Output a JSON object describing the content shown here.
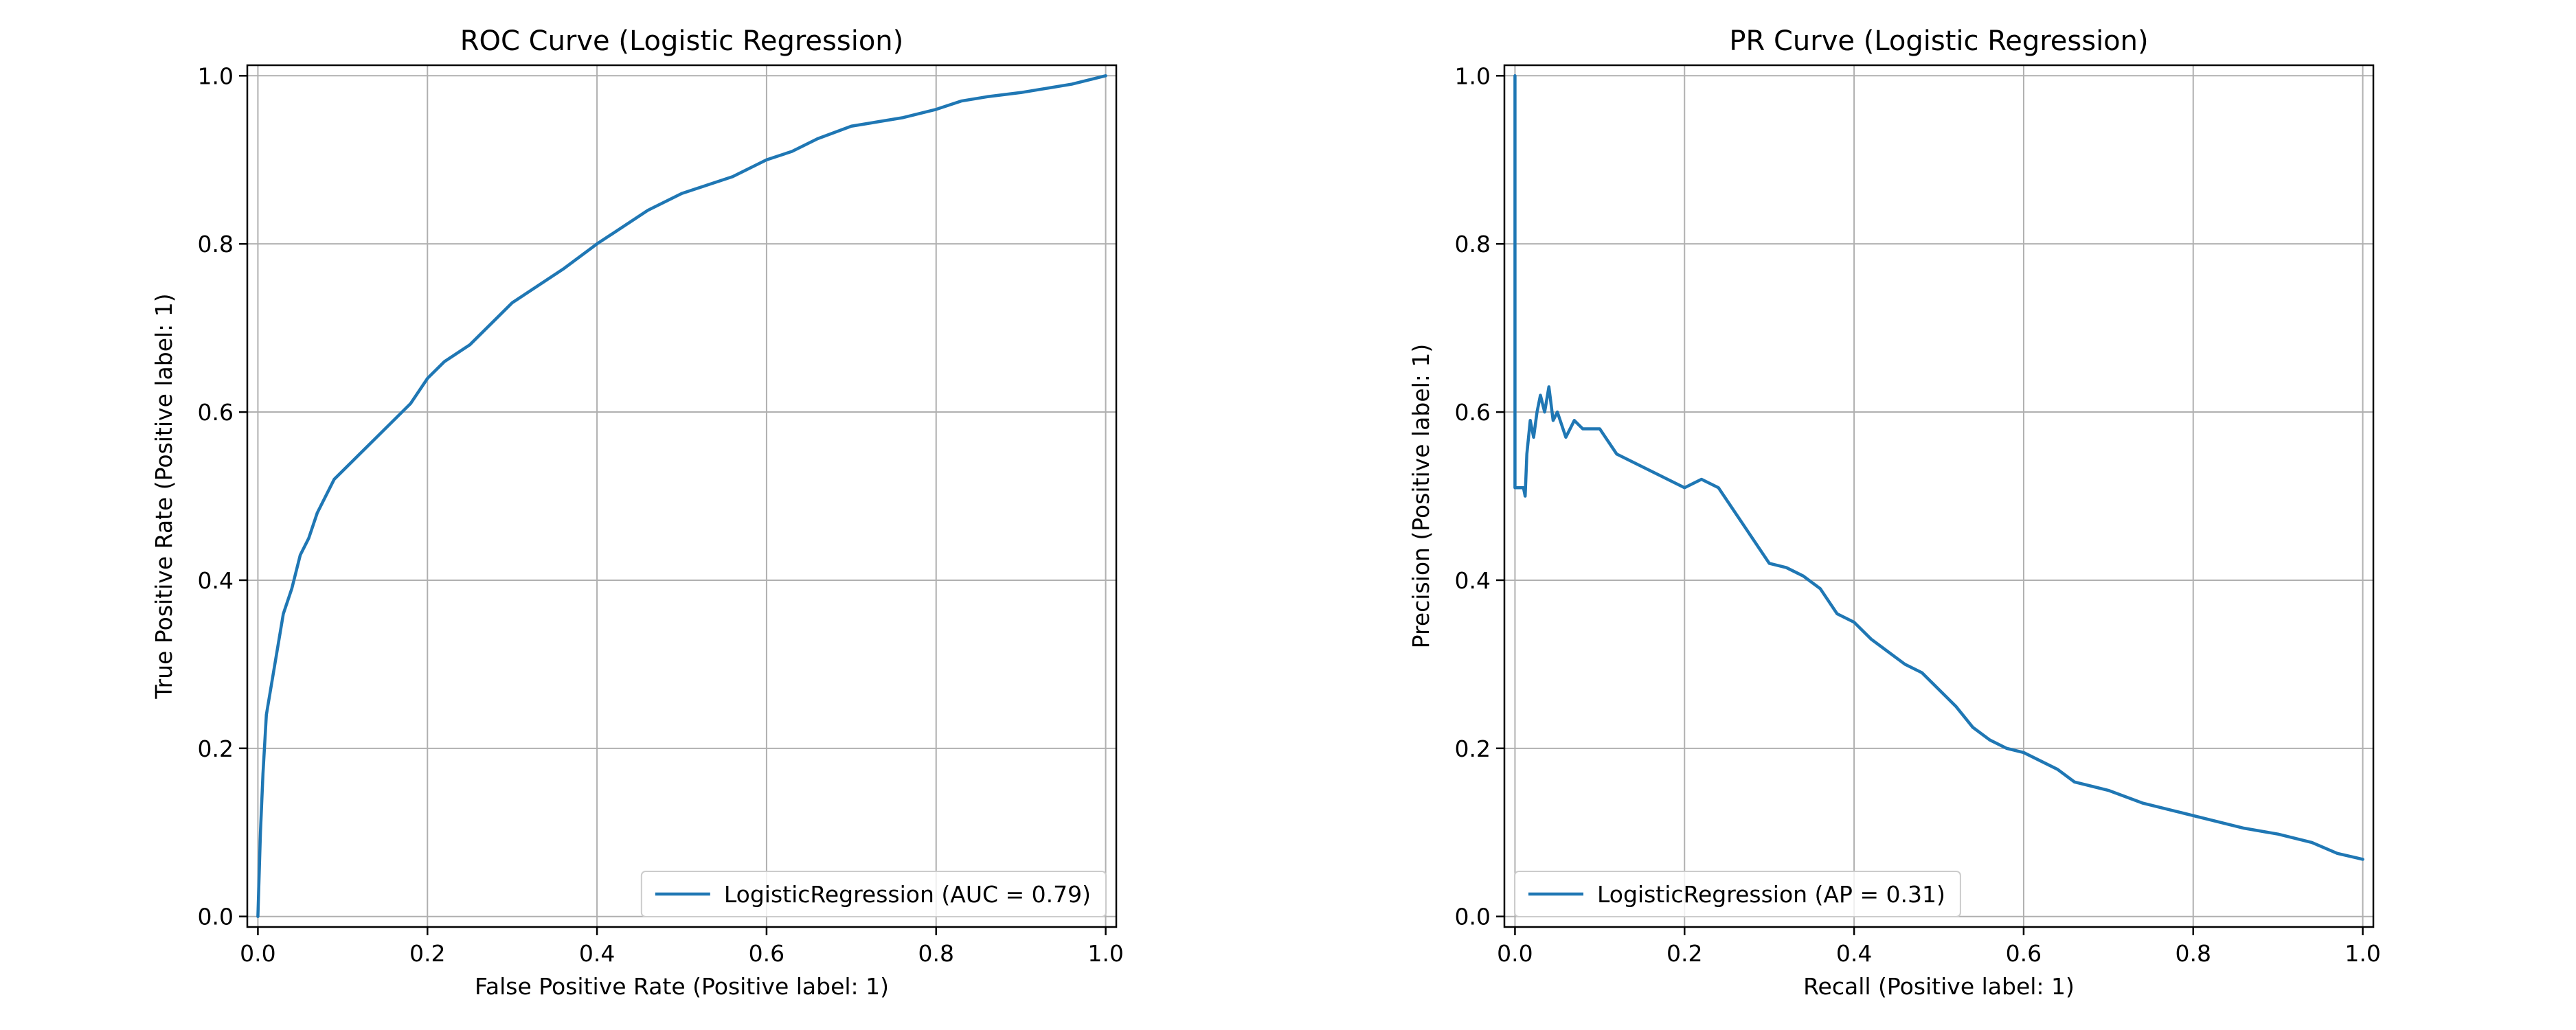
{
  "chart_data": [
    {
      "type": "line",
      "title": "ROC Curve (Logistic Regression)",
      "xlabel": "False Positive Rate (Positive label: 1)",
      "ylabel": "True Positive Rate (Positive label: 1)",
      "xlim": [
        0,
        1
      ],
      "ylim": [
        0,
        1
      ],
      "xticks": [
        "0.0",
        "0.2",
        "0.4",
        "0.6",
        "0.8",
        "1.0"
      ],
      "yticks": [
        "0.0",
        "0.2",
        "0.4",
        "0.6",
        "0.8",
        "1.0"
      ],
      "grid": true,
      "legend_position": "lower-right",
      "series": [
        {
          "name": "LogisticRegression (AUC = 0.79)",
          "color": "#1f77b4",
          "x": [
            0.0,
            0.003,
            0.006,
            0.01,
            0.015,
            0.02,
            0.03,
            0.04,
            0.05,
            0.06,
            0.07,
            0.08,
            0.09,
            0.1,
            0.12,
            0.14,
            0.16,
            0.18,
            0.2,
            0.22,
            0.25,
            0.28,
            0.3,
            0.33,
            0.36,
            0.4,
            0.43,
            0.46,
            0.5,
            0.53,
            0.56,
            0.6,
            0.63,
            0.66,
            0.7,
            0.73,
            0.76,
            0.8,
            0.83,
            0.86,
            0.9,
            0.93,
            0.96,
            0.98,
            1.0
          ],
          "y": [
            0.0,
            0.1,
            0.17,
            0.24,
            0.27,
            0.3,
            0.36,
            0.39,
            0.43,
            0.45,
            0.48,
            0.5,
            0.52,
            0.53,
            0.55,
            0.57,
            0.59,
            0.61,
            0.64,
            0.66,
            0.68,
            0.71,
            0.73,
            0.75,
            0.77,
            0.8,
            0.82,
            0.84,
            0.86,
            0.87,
            0.88,
            0.9,
            0.91,
            0.925,
            0.94,
            0.945,
            0.95,
            0.96,
            0.97,
            0.975,
            0.98,
            0.985,
            0.99,
            0.995,
            1.0
          ]
        }
      ]
    },
    {
      "type": "line",
      "title": "PR Curve (Logistic Regression)",
      "xlabel": "Recall (Positive label: 1)",
      "ylabel": "Precision (Positive label: 1)",
      "xlim": [
        0,
        1
      ],
      "ylim": [
        0,
        1
      ],
      "xticks": [
        "0.0",
        "0.2",
        "0.4",
        "0.6",
        "0.8",
        "1.0"
      ],
      "yticks": [
        "0.0",
        "0.2",
        "0.4",
        "0.6",
        "0.8",
        "1.0"
      ],
      "grid": true,
      "legend_position": "lower-left",
      "series": [
        {
          "name": "LogisticRegression (AP = 0.31)",
          "color": "#1f77b4",
          "x": [
            0.0,
            0.0,
            0.0,
            0.01,
            0.012,
            0.014,
            0.018,
            0.022,
            0.026,
            0.03,
            0.035,
            0.04,
            0.045,
            0.05,
            0.06,
            0.07,
            0.08,
            0.1,
            0.12,
            0.14,
            0.16,
            0.18,
            0.2,
            0.22,
            0.24,
            0.26,
            0.28,
            0.3,
            0.32,
            0.34,
            0.36,
            0.38,
            0.4,
            0.42,
            0.44,
            0.46,
            0.48,
            0.5,
            0.52,
            0.54,
            0.56,
            0.58,
            0.6,
            0.62,
            0.64,
            0.66,
            0.7,
            0.74,
            0.78,
            0.82,
            0.86,
            0.9,
            0.94,
            0.97,
            1.0
          ],
          "y": [
            1.0,
            0.51,
            0.51,
            0.51,
            0.5,
            0.55,
            0.59,
            0.57,
            0.6,
            0.62,
            0.6,
            0.63,
            0.59,
            0.6,
            0.57,
            0.59,
            0.58,
            0.58,
            0.55,
            0.54,
            0.53,
            0.52,
            0.51,
            0.52,
            0.51,
            0.48,
            0.45,
            0.42,
            0.415,
            0.405,
            0.39,
            0.36,
            0.35,
            0.33,
            0.315,
            0.3,
            0.29,
            0.27,
            0.25,
            0.225,
            0.21,
            0.2,
            0.195,
            0.185,
            0.175,
            0.16,
            0.15,
            0.135,
            0.125,
            0.115,
            0.105,
            0.098,
            0.088,
            0.075,
            0.068
          ]
        }
      ]
    }
  ]
}
